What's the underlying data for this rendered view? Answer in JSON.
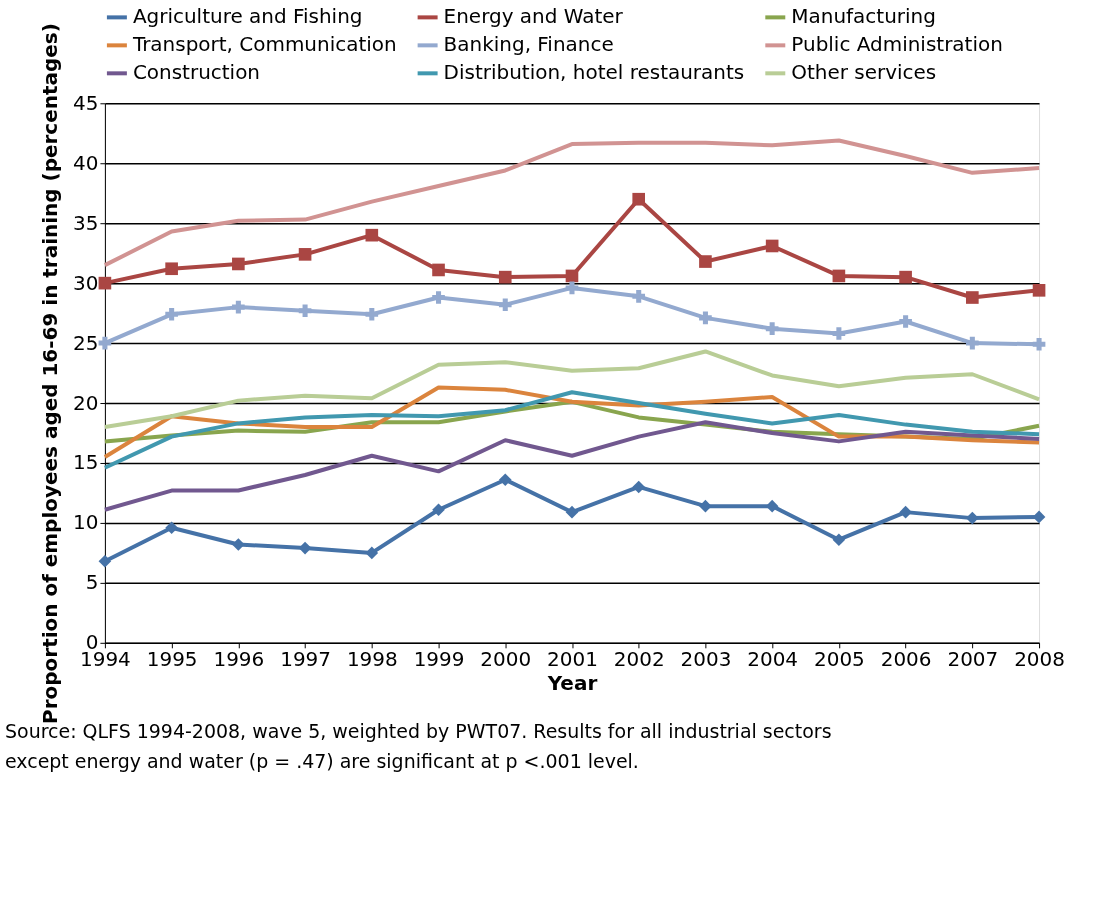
{
  "chart_data": {
    "type": "line",
    "xlabel": "Year",
    "ylabel": "Proportion of employees aged 16-69 in training (percentages)",
    "x": [
      1994,
      1995,
      1996,
      1997,
      1998,
      1999,
      2000,
      2001,
      2002,
      2003,
      2004,
      2005,
      2006,
      2007,
      2008
    ],
    "xlim": [
      1994,
      2008
    ],
    "xticks": [
      1994,
      1995,
      1996,
      1997,
      1998,
      1999,
      2000,
      2001,
      2002,
      2003,
      2004,
      2005,
      2006,
      2007,
      2008
    ],
    "ylim": [
      0,
      45
    ],
    "yticks": [
      0,
      5,
      10,
      15,
      20,
      25,
      30,
      35,
      40,
      45
    ],
    "grid": "y",
    "legend": "top",
    "series": [
      {
        "name": "Agriculture and Fishing",
        "color": "#4572a7",
        "marker": "diamond",
        "values": [
          6.8,
          9.6,
          8.2,
          7.9,
          7.5,
          11.1,
          13.6,
          10.9,
          13.0,
          11.4,
          11.4,
          8.6,
          10.9,
          10.4,
          10.5
        ]
      },
      {
        "name": "Energy and Water",
        "color": "#aa4643",
        "marker": "square",
        "values": [
          30.0,
          31.2,
          31.6,
          32.4,
          34.0,
          31.1,
          30.5,
          30.6,
          37.0,
          31.8,
          33.1,
          30.6,
          30.5,
          28.8,
          29.4
        ]
      },
      {
        "name": "Manufacturing",
        "color": "#89a54e",
        "marker": "none",
        "values": [
          16.8,
          17.3,
          17.7,
          17.6,
          18.4,
          18.4,
          19.3,
          20.1,
          18.8,
          18.2,
          17.6,
          17.4,
          17.2,
          17.0,
          18.1
        ]
      },
      {
        "name": "Transport, Communication",
        "color": "#db843d",
        "marker": "none",
        "values": [
          15.5,
          18.9,
          18.3,
          18.0,
          18.0,
          21.3,
          21.1,
          20.1,
          19.8,
          20.1,
          20.5,
          17.2,
          17.2,
          16.9,
          16.7
        ]
      },
      {
        "name": "Banking, Finance",
        "color": "#93a9cf",
        "marker": "cross",
        "values": [
          25.0,
          27.4,
          28.0,
          27.7,
          27.4,
          28.8,
          28.2,
          29.6,
          28.9,
          27.1,
          26.2,
          25.8,
          26.8,
          25.0,
          24.9
        ]
      },
      {
        "name": "Public Administration",
        "color": "#d19392",
        "marker": "none",
        "values": [
          31.5,
          34.3,
          35.2,
          35.3,
          36.8,
          38.1,
          39.4,
          41.6,
          41.7,
          41.7,
          41.5,
          41.9,
          40.6,
          39.2,
          39.6
        ]
      },
      {
        "name": "Construction",
        "color": "#71588f",
        "marker": "none",
        "values": [
          11.1,
          12.7,
          12.7,
          14.0,
          15.6,
          14.3,
          16.9,
          15.6,
          17.2,
          18.4,
          17.5,
          16.8,
          17.6,
          17.3,
          17.0
        ]
      },
      {
        "name": "Distribution, hotel restaurants",
        "color": "#4198af",
        "marker": "none",
        "values": [
          14.6,
          17.2,
          18.3,
          18.8,
          19.0,
          18.9,
          19.4,
          20.9,
          20.0,
          19.1,
          18.3,
          19.0,
          18.2,
          17.6,
          17.4
        ]
      },
      {
        "name": "Other services",
        "color": "#b9cd96",
        "marker": "none",
        "values": [
          18.0,
          18.9,
          20.2,
          20.6,
          20.4,
          23.2,
          23.4,
          22.7,
          22.9,
          24.3,
          22.3,
          21.4,
          22.1,
          22.4,
          20.3
        ]
      }
    ],
    "annotations": [
      "Source: QLFS 1994-2008, wave 5, weighted by PWT07. Results for all industrial sectors except energy and water (p = .47) are significant at p <.001 level."
    ]
  }
}
